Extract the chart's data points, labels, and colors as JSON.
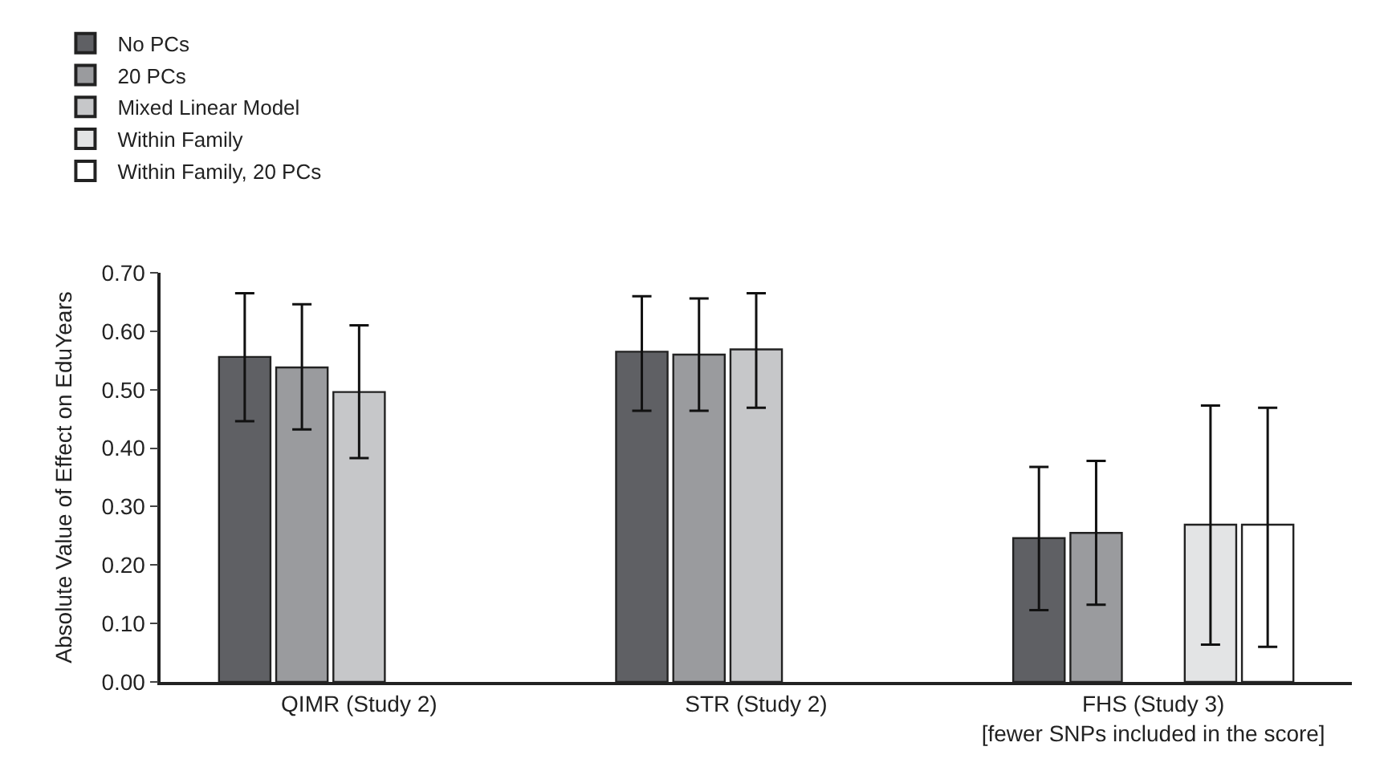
{
  "chart_data": {
    "type": "bar",
    "ylabel": "Absolute Value of Effect on EduYears",
    "categories": [
      "QIMR (Study 2)",
      "STR (Study 2)",
      "FHS (Study 3)\n[fewer SNPs included in the score]"
    ],
    "series": [
      {
        "name": "No PCs",
        "color": "#5f6064",
        "values": [
          0.556,
          0.565,
          0.246
        ],
        "errors": [
          [
            0.446,
            0.665
          ],
          [
            0.464,
            0.66
          ],
          [
            0.123,
            0.368
          ]
        ]
      },
      {
        "name": "20 PCs",
        "color": "#9a9b9e",
        "values": [
          0.538,
          0.56,
          0.255
        ],
        "errors": [
          [
            0.432,
            0.646
          ],
          [
            0.464,
            0.656
          ],
          [
            0.132,
            0.378
          ]
        ]
      },
      {
        "name": "Mixed Linear Model",
        "color": "#c6c7c9",
        "values": [
          0.496,
          0.569,
          null
        ],
        "errors": [
          [
            0.383,
            0.61
          ],
          [
            0.469,
            0.665
          ],
          null
        ]
      },
      {
        "name": "Within Family",
        "color": "#e3e4e5",
        "values": [
          null,
          null,
          0.269
        ],
        "errors": [
          null,
          null,
          [
            0.064,
            0.473
          ]
        ]
      },
      {
        "name": "Within Family, 20 PCs",
        "color": "#ffffff",
        "values": [
          null,
          null,
          0.269
        ],
        "errors": [
          null,
          null,
          [
            0.06,
            0.469
          ]
        ]
      }
    ],
    "ylim": [
      0,
      0.7
    ],
    "yticks": [
      {
        "value": 0,
        "label": "0.00"
      },
      {
        "value": 0.1,
        "label": "0.10"
      },
      {
        "value": 0.2,
        "label": "0.20"
      },
      {
        "value": 0.3,
        "label": "0.30"
      },
      {
        "value": 0.4,
        "label": "0.40"
      },
      {
        "value": 0.5,
        "label": "0.50"
      },
      {
        "value": 0.6,
        "label": "0.60"
      },
      {
        "value": 0.7,
        "label": "0.70"
      }
    ],
    "legend": "top left"
  }
}
